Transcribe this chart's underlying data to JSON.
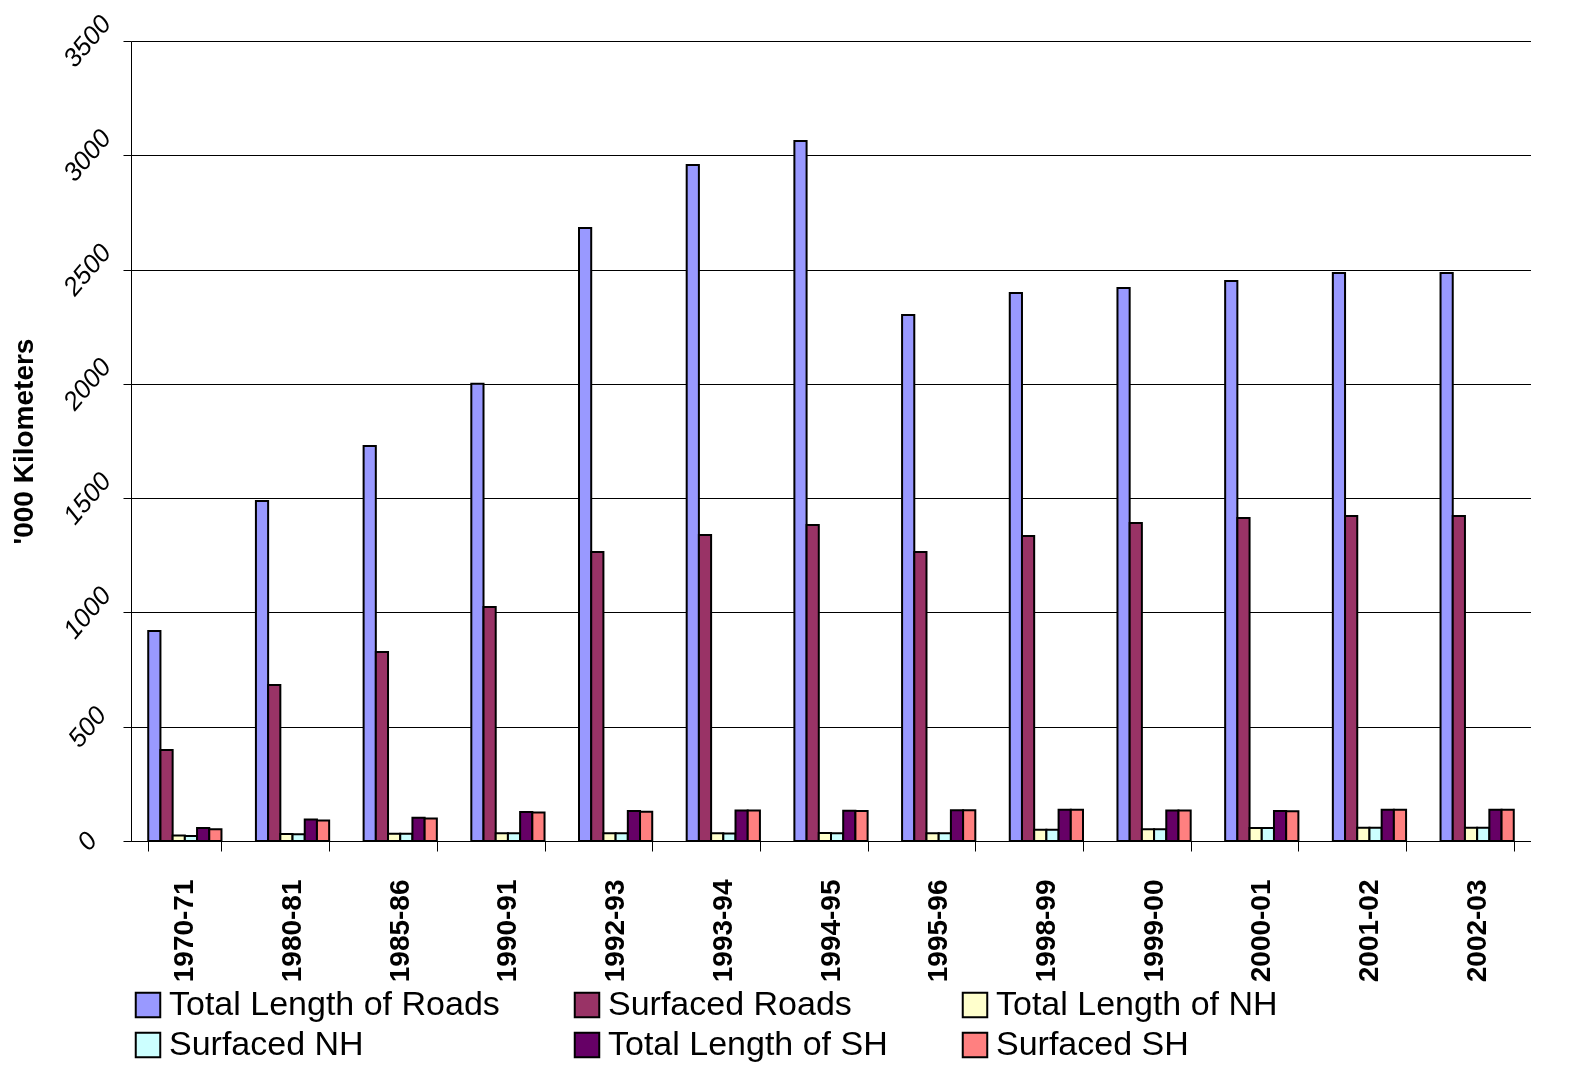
{
  "chart_data": {
    "type": "bar",
    "ylabel": "'000 Kilometers",
    "categories": [
      "1970-71",
      "1980-81",
      "1985-86",
      "1990-91",
      "1992-93",
      "1993-94",
      "1994-95",
      "1995-96",
      "1998-99",
      "1999-00",
      "2000-01",
      "2001-02",
      "2002-03"
    ],
    "series": [
      {
        "name": "Total Length of Roads",
        "color": "#9999ff",
        "values": [
          919,
          1488,
          1728,
          2000,
          2682,
          2958,
          3063,
          2301,
          2398,
          2419,
          2450,
          2485,
          2485
        ]
      },
      {
        "name": "Surfaced Roads",
        "color": "#993366",
        "values": [
          398,
          683,
          827,
          1024,
          1264,
          1339,
          1383,
          1264,
          1334,
          1391,
          1413,
          1422,
          1422
        ]
      },
      {
        "name": "Total Length of NH",
        "color": "#ffffcc",
        "values": [
          24,
          31,
          32,
          34,
          34,
          34,
          35,
          34,
          49,
          51,
          57,
          58,
          58
        ]
      },
      {
        "name": "Surfaced NH",
        "color": "#ccffff",
        "values": [
          22,
          29,
          32,
          34,
          34,
          33,
          34,
          34,
          49,
          51,
          57,
          58,
          58
        ]
      },
      {
        "name": "Total Length of SH",
        "color": "#660066",
        "values": [
          57,
          94,
          102,
          127,
          131,
          133,
          132,
          135,
          137,
          133,
          131,
          137,
          137
        ]
      },
      {
        "name": "Surfaced SH",
        "color": "#ff8080",
        "values": [
          51,
          90,
          98,
          125,
          128,
          133,
          131,
          134,
          137,
          133,
          130,
          137,
          137
        ]
      }
    ],
    "ylim": [
      0,
      3500
    ],
    "yticks": [
      0,
      500,
      1000,
      1500,
      2000,
      2500,
      3000,
      3500
    ],
    "grid": "y",
    "legend": "bottom"
  }
}
